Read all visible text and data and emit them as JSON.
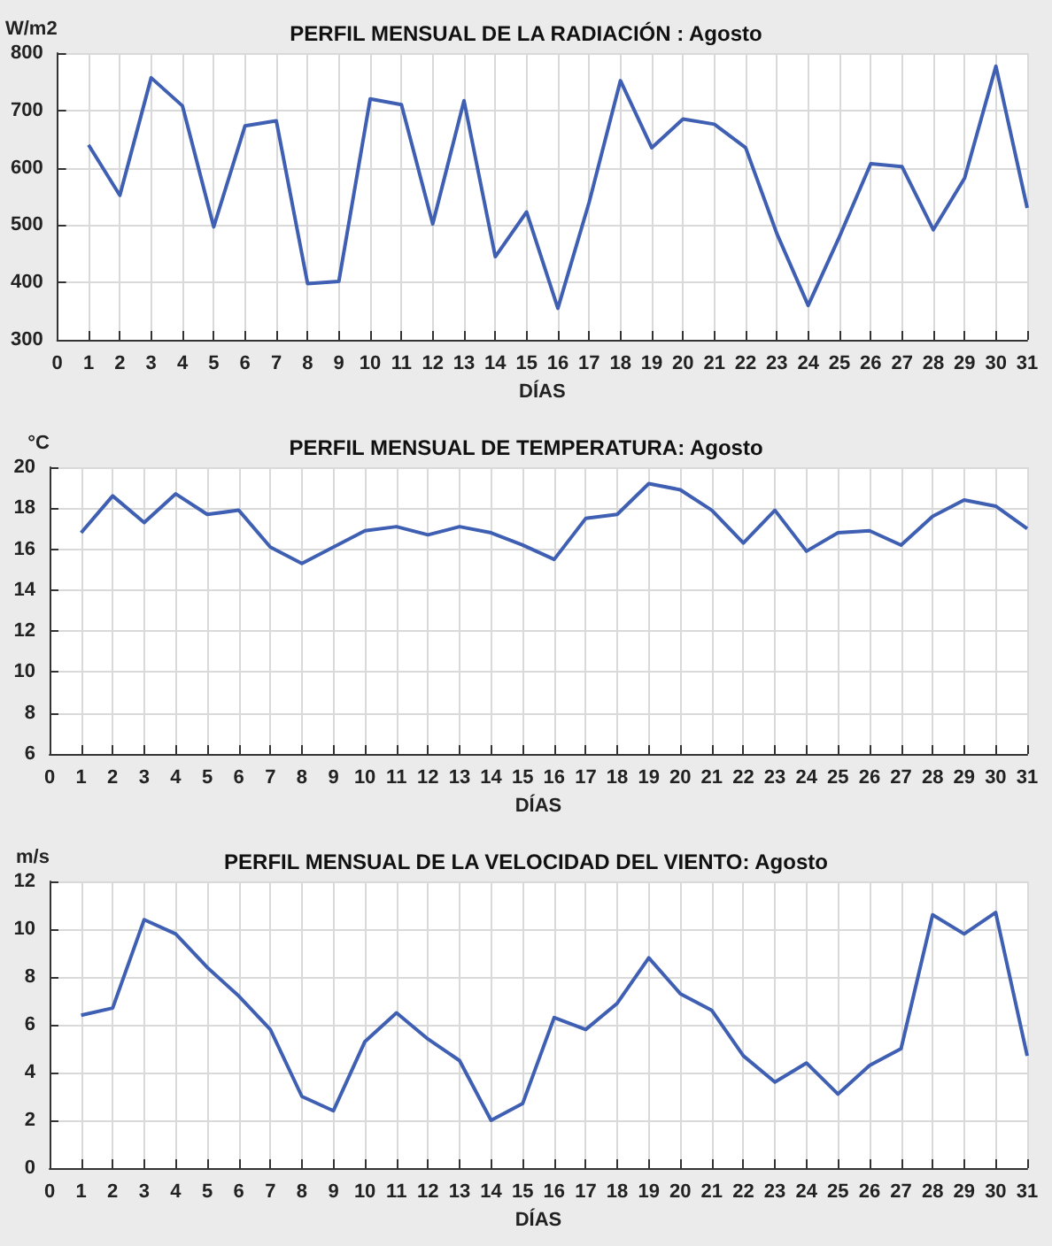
{
  "chart_data": [
    {
      "type": "line",
      "title": "PERFIL MENSUAL DE LA RADIACIÓN : Agosto",
      "xlabel": "DÍAS",
      "ylabel": "W/m2",
      "x": [
        1,
        2,
        3,
        4,
        5,
        6,
        7,
        8,
        9,
        10,
        11,
        12,
        13,
        14,
        15,
        16,
        17,
        18,
        19,
        20,
        21,
        22,
        23,
        24,
        25,
        26,
        27,
        28,
        29,
        30,
        31
      ],
      "series": [
        {
          "color": "#3f5fb3",
          "values": [
            640,
            552,
            757,
            708,
            497,
            673,
            682,
            398,
            402,
            720,
            710,
            502,
            717,
            445,
            523,
            355,
            540,
            752,
            635,
            685,
            676,
            635,
            485,
            360,
            480,
            607,
            602,
            492,
            582,
            777,
            530
          ]
        }
      ],
      "xlim": [
        0,
        31
      ],
      "xticks": [
        0,
        1,
        2,
        3,
        4,
        5,
        6,
        7,
        8,
        9,
        10,
        11,
        12,
        13,
        14,
        15,
        16,
        17,
        18,
        19,
        20,
        21,
        22,
        23,
        24,
        25,
        26,
        27,
        28,
        29,
        30,
        31
      ],
      "ylim": [
        300,
        800
      ],
      "yticks": [
        300,
        400,
        500,
        600,
        700,
        800
      ],
      "grid": true,
      "marker": "none",
      "line_style": "solid"
    },
    {
      "type": "line",
      "title": "PERFIL MENSUAL DE TEMPERATURA: Agosto",
      "xlabel": "DÍAS",
      "ylabel": "°C",
      "x": [
        1,
        2,
        3,
        4,
        5,
        6,
        7,
        8,
        9,
        10,
        11,
        12,
        13,
        14,
        15,
        16,
        17,
        18,
        19,
        20,
        21,
        22,
        23,
        24,
        25,
        26,
        27,
        28,
        29,
        30,
        31
      ],
      "series": [
        {
          "color": "#3f5fb3",
          "values": [
            16.8,
            18.6,
            17.3,
            18.7,
            17.7,
            17.9,
            16.1,
            15.3,
            16.1,
            16.9,
            17.1,
            16.7,
            17.1,
            16.8,
            16.2,
            15.5,
            17.5,
            17.7,
            19.2,
            18.9,
            17.9,
            16.3,
            17.9,
            15.9,
            16.8,
            16.9,
            16.2,
            17.6,
            18.4,
            18.1,
            17.0
          ]
        }
      ],
      "xlim": [
        0,
        31
      ],
      "xticks": [
        0,
        1,
        2,
        3,
        4,
        5,
        6,
        7,
        8,
        9,
        10,
        11,
        12,
        13,
        14,
        15,
        16,
        17,
        18,
        19,
        20,
        21,
        22,
        23,
        24,
        25,
        26,
        27,
        28,
        29,
        30,
        31
      ],
      "ylim": [
        6,
        20
      ],
      "yticks": [
        6,
        8,
        10,
        12,
        14,
        16,
        18,
        20
      ],
      "grid": true,
      "marker": "none",
      "line_style": "solid"
    },
    {
      "type": "line",
      "title": "PERFIL MENSUAL DE LA VELOCIDAD DEL VIENTO: Agosto",
      "xlabel": "DÍAS",
      "ylabel": "m/s",
      "x": [
        1,
        2,
        3,
        4,
        5,
        6,
        7,
        8,
        9,
        10,
        11,
        12,
        13,
        14,
        15,
        16,
        17,
        18,
        19,
        20,
        21,
        22,
        23,
        24,
        25,
        26,
        27,
        28,
        29,
        30,
        31
      ],
      "series": [
        {
          "color": "#3f5fb3",
          "values": [
            6.4,
            6.7,
            10.4,
            9.8,
            8.4,
            7.2,
            5.8,
            3.0,
            2.4,
            5.3,
            6.5,
            5.4,
            4.5,
            2.0,
            2.7,
            6.3,
            5.8,
            6.9,
            8.8,
            7.3,
            6.6,
            4.7,
            3.6,
            4.4,
            3.1,
            4.3,
            5.0,
            10.6,
            9.8,
            10.7,
            4.7
          ]
        }
      ],
      "xlim": [
        0,
        31
      ],
      "xticks": [
        0,
        1,
        2,
        3,
        4,
        5,
        6,
        7,
        8,
        9,
        10,
        11,
        12,
        13,
        14,
        15,
        16,
        17,
        18,
        19,
        20,
        21,
        22,
        23,
        24,
        25,
        26,
        27,
        28,
        29,
        30,
        31
      ],
      "ylim": [
        0,
        12
      ],
      "yticks": [
        0,
        2,
        4,
        6,
        8,
        10,
        12
      ],
      "grid": true,
      "marker": "none",
      "line_style": "solid"
    }
  ]
}
